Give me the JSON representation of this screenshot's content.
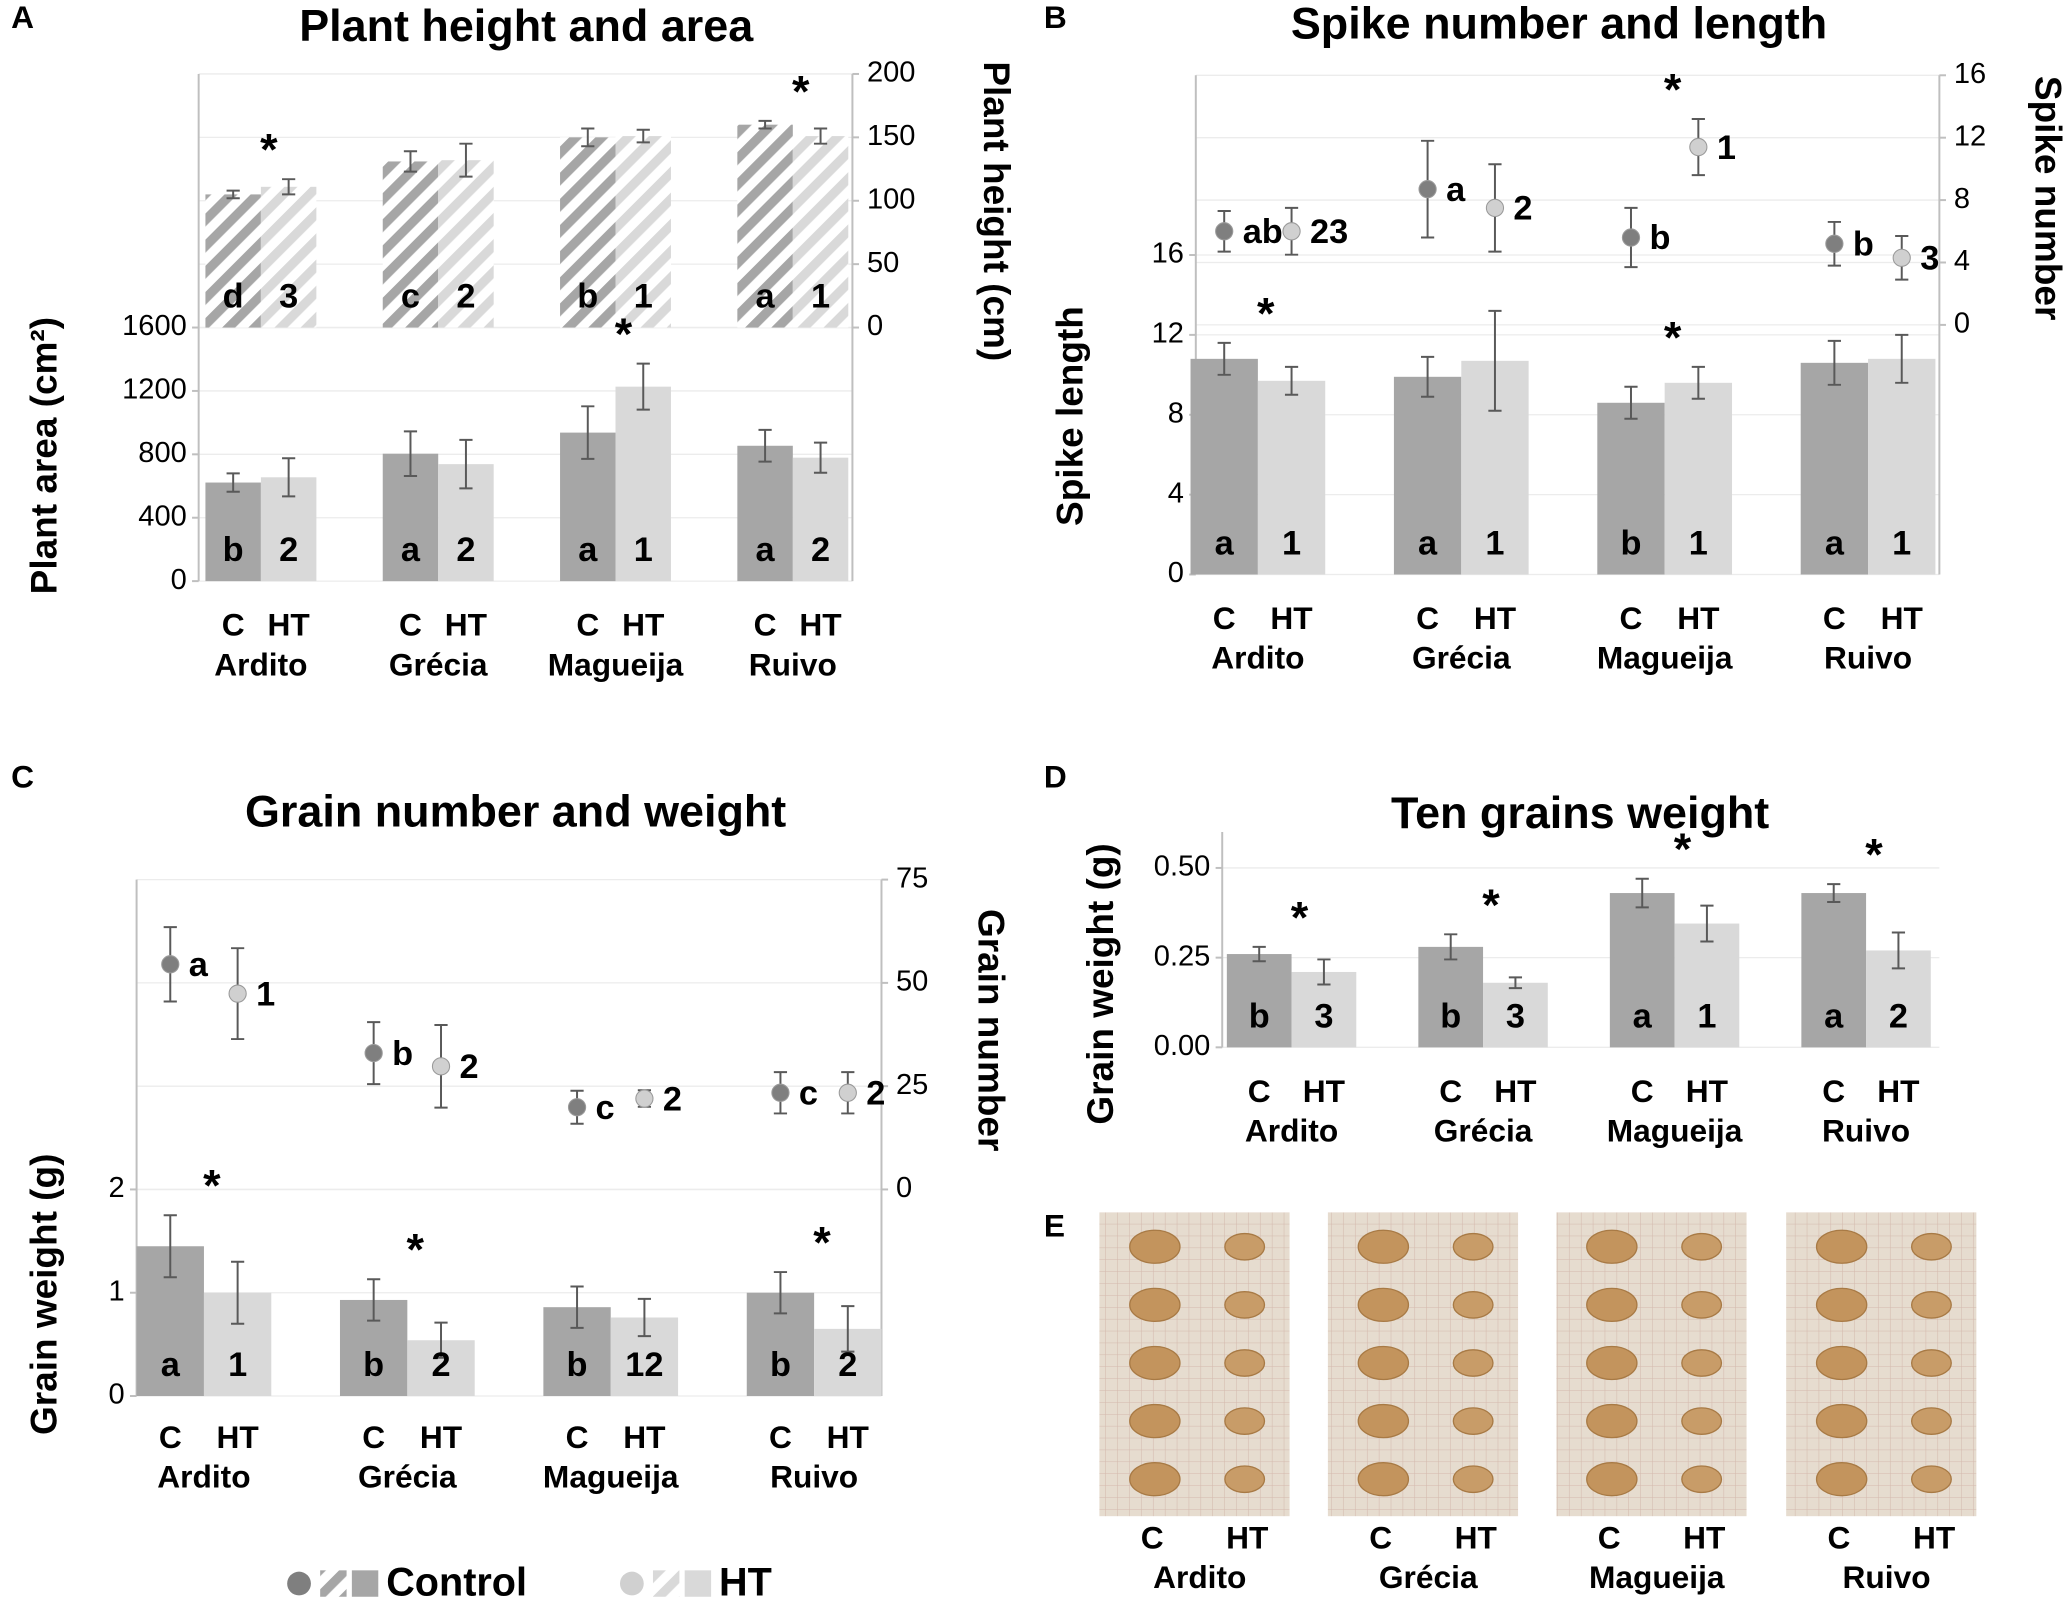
{
  "chart_data": [
    {
      "type": "bar",
      "panel": "A",
      "title": "Plant height and area",
      "ylabel": "Plant area (cm²)",
      "y2label": "Plant height (cm)",
      "categories": [
        "Ardito",
        "Grécia",
        "Magueija",
        "Ruivo"
      ],
      "groups": [
        "C",
        "HT"
      ],
      "ylim": [
        0,
        3200
      ],
      "yticks": [
        0,
        400,
        800,
        1200,
        1600
      ],
      "y2lim": [
        -200,
        200
      ],
      "y2ticks": [
        0,
        50,
        100,
        150,
        200
      ],
      "grid": true,
      "series": [
        {
          "name": "Control",
          "type": "bar",
          "color": "#a6a6a6",
          "values": [
            622,
            804,
            937,
            854
          ],
          "errors": [
            58,
            141,
            166,
            100
          ],
          "letters": [
            "b",
            "a",
            "a",
            "a"
          ]
        },
        {
          "name": "HT",
          "type": "bar",
          "color": "#d9d9d9",
          "values": [
            655,
            738,
            1227,
            779
          ],
          "errors": [
            120,
            153,
            145,
            95
          ],
          "letters": [
            "2",
            "2",
            "1",
            "2"
          ],
          "significance": [
            null,
            null,
            "*",
            null
          ]
        },
        {
          "name": "Control",
          "type": "hatched-bar",
          "axis": "y2",
          "color": "#a6a6a6",
          "values": [
            105,
            131,
            150,
            160
          ],
          "errors": [
            3,
            8,
            7,
            3
          ],
          "letters": [
            "d",
            "c",
            "b",
            "a"
          ]
        },
        {
          "name": "HT",
          "type": "hatched-bar",
          "axis": "y2",
          "color": "#d9d9d9",
          "values": [
            111,
            132,
            151,
            151
          ],
          "errors": [
            6,
            13,
            5,
            6
          ],
          "letters": [
            "3",
            "2",
            "1",
            "1"
          ],
          "significance": [
            "*",
            null,
            null,
            "*"
          ]
        }
      ]
    },
    {
      "type": "bar",
      "panel": "B",
      "title": "Spike number and length",
      "ylabel": "Spike length",
      "y2label": "Spike number",
      "categories": [
        "Ardito",
        "Grécia",
        "Magueija",
        "Ruivo"
      ],
      "groups": [
        "C",
        "HT"
      ],
      "ylim": [
        0,
        25
      ],
      "yticks": [
        0,
        4,
        8,
        12,
        16
      ],
      "y2lim": [
        -16,
        16
      ],
      "y2ticks": [
        0,
        4,
        8,
        12,
        16
      ],
      "grid": true,
      "series": [
        {
          "name": "Control",
          "type": "bar",
          "color": "#a6a6a6",
          "values": [
            10.8,
            9.9,
            8.6,
            10.6
          ],
          "errors": [
            0.8,
            1.0,
            0.8,
            1.1
          ],
          "letters": [
            "a",
            "a",
            "b",
            "a"
          ]
        },
        {
          "name": "HT",
          "type": "bar",
          "color": "#d9d9d9",
          "values": [
            9.7,
            10.7,
            9.6,
            10.8
          ],
          "errors": [
            0.7,
            2.5,
            0.8,
            1.2
          ],
          "letters": [
            "1",
            "1",
            "1",
            "1"
          ],
          "significance": [
            "*",
            null,
            "*",
            null
          ]
        },
        {
          "name": "Control",
          "type": "point",
          "axis": "y2",
          "color": "#7f7f7f",
          "values": [
            6.0,
            8.7,
            5.6,
            5.2
          ],
          "errors": [
            1.3,
            3.1,
            1.9,
            1.4
          ],
          "letters": [
            "ab",
            "a",
            "b",
            "b"
          ]
        },
        {
          "name": "HT",
          "type": "point",
          "axis": "y2",
          "color": "#d0d0d0",
          "values": [
            6.0,
            7.5,
            11.4,
            4.3
          ],
          "errors": [
            1.5,
            2.8,
            1.8,
            1.4
          ],
          "letters": [
            "23",
            "2",
            "1",
            "3"
          ],
          "significance": [
            null,
            null,
            "*",
            null
          ]
        }
      ]
    },
    {
      "type": "bar",
      "panel": "C",
      "title": "Grain number and weight",
      "ylabel": "Grain weight (g)",
      "y2label": "Grain number",
      "categories": [
        "Ardito",
        "Grécia",
        "Magueija",
        "Ruivo"
      ],
      "groups": [
        "C",
        "HT"
      ],
      "ylim": [
        0,
        5
      ],
      "yticks": [
        0,
        1,
        2
      ],
      "y2lim": [
        -50,
        75
      ],
      "y2ticks": [
        0,
        25,
        50,
        75
      ],
      "grid": true,
      "series": [
        {
          "name": "Control",
          "type": "bar",
          "color": "#a6a6a6",
          "values": [
            1.45,
            0.93,
            0.86,
            1.0
          ],
          "errors": [
            0.3,
            0.2,
            0.2,
            0.2
          ],
          "letters": [
            "a",
            "b",
            "b",
            "b"
          ]
        },
        {
          "name": "HT",
          "type": "bar",
          "color": "#d9d9d9",
          "values": [
            1.0,
            0.54,
            0.76,
            0.65
          ],
          "errors": [
            0.3,
            0.17,
            0.18,
            0.22
          ],
          "letters": [
            "1",
            "2",
            "12",
            "2"
          ],
          "significance": [
            "*",
            "*",
            null,
            "*"
          ]
        },
        {
          "name": "Control",
          "type": "point",
          "axis": "y2",
          "color": "#7f7f7f",
          "values": [
            54.5,
            33,
            19.9,
            23.4
          ],
          "errors": [
            9,
            7.5,
            4,
            5
          ],
          "letters": [
            "a",
            "b",
            "c",
            "c"
          ]
        },
        {
          "name": "HT",
          "type": "point",
          "axis": "y2",
          "color": "#d0d0d0",
          "values": [
            47.4,
            29.8,
            22,
            23.4
          ],
          "errors": [
            11,
            10,
            2,
            5
          ],
          "letters": [
            "1",
            "2",
            "2",
            "2"
          ]
        }
      ]
    },
    {
      "type": "bar",
      "panel": "D",
      "title": "Ten grains weight",
      "ylabel": "Grain weight (g)",
      "categories": [
        "Ardito",
        "Grécia",
        "Magueija",
        "Ruivo"
      ],
      "groups": [
        "C",
        "HT"
      ],
      "ylim": [
        0,
        0.6
      ],
      "yticks": [
        {
          "value": 0,
          "label": "0.00"
        },
        {
          "value": 0.25,
          "label": "0.25"
        },
        {
          "value": 0.5,
          "label": "0.50"
        }
      ],
      "grid": true,
      "series": [
        {
          "name": "Control",
          "type": "bar",
          "color": "#a6a6a6",
          "values": [
            0.26,
            0.28,
            0.43,
            0.43
          ],
          "errors": [
            0.02,
            0.035,
            0.04,
            0.025
          ],
          "letters": [
            "b",
            "b",
            "a",
            "a"
          ]
        },
        {
          "name": "HT",
          "type": "bar",
          "color": "#d9d9d9",
          "values": [
            0.21,
            0.18,
            0.345,
            0.27
          ],
          "errors": [
            0.035,
            0.015,
            0.05,
            0.05
          ],
          "letters": [
            "3",
            "3",
            "1",
            "2"
          ],
          "significance": [
            "*",
            "*",
            "*",
            "*"
          ]
        }
      ]
    }
  ],
  "photo_panel": {
    "panel": "E",
    "categories": [
      "Ardito",
      "Grécia",
      "Magueija",
      "Ruivo"
    ],
    "groups": [
      "C",
      "HT"
    ]
  }
}
